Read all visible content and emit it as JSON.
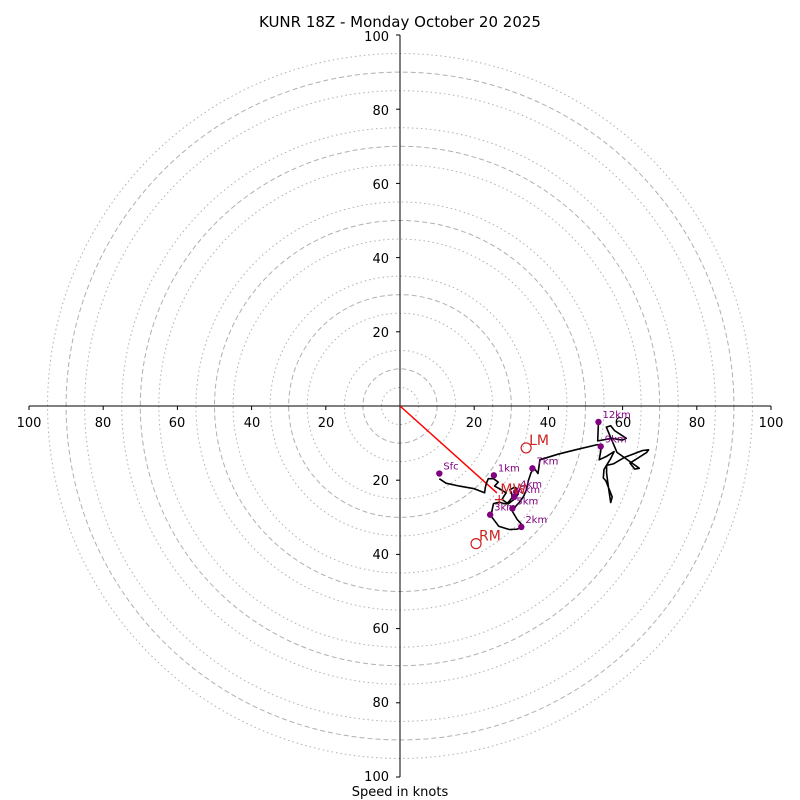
{
  "chart_data": {
    "type": "hodograph",
    "title": "KUNR 18Z - Monday October 20 2025",
    "xlabel": "Speed in knots",
    "ylabel": "",
    "range": [
      -100,
      100
    ],
    "tick_labels": [
      "100",
      "80",
      "60",
      "40",
      "20",
      "20",
      "40",
      "60",
      "80",
      "100"
    ],
    "rings": {
      "dashed": [
        10,
        30,
        50,
        70,
        90
      ],
      "dotted": [
        5,
        15,
        25,
        35,
        45,
        55,
        65,
        75,
        85,
        95
      ]
    },
    "colors": {
      "trace": "#000000",
      "height_marker": "#800080",
      "motion": "#cc2222",
      "mean_wind_vector": "#ff0000",
      "ring": "#b0b0b0",
      "axis": "#000000"
    },
    "hodograph_trace": [
      [
        10.6,
        -19.6
      ],
      [
        12.4,
        -20.8
      ],
      [
        16,
        -21.6
      ],
      [
        20,
        -22.3
      ],
      [
        22.8,
        -23.4
      ],
      [
        23,
        -22
      ],
      [
        23.3,
        -20.8
      ],
      [
        23.8,
        -19.6
      ],
      [
        25.2,
        -19.6
      ],
      [
        26.5,
        -20.5
      ],
      [
        25.5,
        -21.6
      ],
      [
        26.8,
        -22.3
      ],
      [
        28.6,
        -23.4
      ],
      [
        28,
        -24.3
      ],
      [
        27.5,
        -25.2
      ],
      [
        29.2,
        -26.4
      ],
      [
        30.8,
        -25.1
      ],
      [
        31.9,
        -23.7
      ],
      [
        31.6,
        -22.3
      ],
      [
        30.9,
        -21.9
      ],
      [
        29.6,
        -22.6
      ],
      [
        30.1,
        -23.5
      ],
      [
        30.2,
        -24.7
      ],
      [
        29.6,
        -25.5
      ],
      [
        28.8,
        -26.4
      ],
      [
        28,
        -26.3
      ],
      [
        26.8,
        -25.9
      ],
      [
        25.2,
        -26.3
      ],
      [
        24.9,
        -27.7
      ],
      [
        24.5,
        -29.6
      ],
      [
        26.6,
        -32.4
      ],
      [
        29.4,
        -33.3
      ],
      [
        31.6,
        -33.2
      ],
      [
        33.2,
        -32.4
      ],
      [
        31.6,
        -30.6
      ],
      [
        30.3,
        -28.4
      ],
      [
        31.2,
        -27
      ],
      [
        32.2,
        -25.9
      ],
      [
        33.3,
        -24.4
      ],
      [
        34.1,
        -22.5
      ],
      [
        34.6,
        -20.1
      ],
      [
        35.3,
        -18
      ],
      [
        36.1,
        -16.7
      ],
      [
        36.7,
        -17.5
      ],
      [
        37.2,
        -18.2
      ],
      [
        37.7,
        -14.5
      ],
      [
        42.6,
        -13
      ],
      [
        47.3,
        -11.8
      ],
      [
        53.2,
        -10.4
      ],
      [
        54.2,
        -10.6
      ],
      [
        54.1,
        -12.2
      ],
      [
        53.7,
        -14.5
      ],
      [
        55.8,
        -13.5
      ],
      [
        57.7,
        -12.3
      ],
      [
        56.7,
        -14.3
      ],
      [
        55,
        -17.1
      ],
      [
        54.8,
        -19.4
      ],
      [
        55.5,
        -20.2
      ],
      [
        57.2,
        -24.5
      ],
      [
        56.8,
        -26
      ],
      [
        56.2,
        -22
      ],
      [
        55.7,
        -18.1
      ],
      [
        55.7,
        -16
      ],
      [
        57.5,
        -15.6
      ],
      [
        60.6,
        -13.8
      ],
      [
        65.4,
        -12
      ],
      [
        67,
        -11.8
      ],
      [
        66.5,
        -12.5
      ],
      [
        62,
        -15.4
      ],
      [
        63.3,
        -17
      ],
      [
        64.5,
        -16.8
      ],
      [
        58.5,
        -12.5
      ],
      [
        55.6,
        -5.7
      ],
      [
        56.8,
        -5.3
      ],
      [
        57.8,
        -6.6
      ],
      [
        61,
        -8.7
      ],
      [
        59.9,
        -9.2
      ],
      [
        57.2,
        -8.7
      ],
      [
        53.3,
        -9.4
      ],
      [
        53.5,
        -4.1
      ]
    ],
    "height_points": [
      {
        "label": "Sfc",
        "x": 10.6,
        "y": -18.2
      },
      {
        "label": "1km",
        "x": 25.3,
        "y": -18.7
      },
      {
        "label": "2km",
        "x": 32.7,
        "y": -32.6
      },
      {
        "label": "3km",
        "x": 24.3,
        "y": -29.3
      },
      {
        "label": "4km",
        "x": 31.3,
        "y": -23.1
      },
      {
        "label": "5km",
        "x": 30.3,
        "y": -27.6
      },
      {
        "label": "6km",
        "x": 30.8,
        "y": -24.5
      },
      {
        "label": "7km",
        "x": 35.7,
        "y": -16.8
      },
      {
        "label": "9km",
        "x": 54.1,
        "y": -10.9
      },
      {
        "label": "12km",
        "x": 53.5,
        "y": -4.3
      }
    ],
    "storm_motion": [
      {
        "label": "LM",
        "x": 34,
        "y": -11.3
      },
      {
        "label": "RM",
        "x": 20.5,
        "y": -37.1
      }
    ],
    "mean_wind": {
      "label": "MW",
      "x": 26.8,
      "y": -23.2
    },
    "red_vector": {
      "x": 26.1,
      "y": -23.4
    },
    "mean_wind_glyph": "+"
  }
}
